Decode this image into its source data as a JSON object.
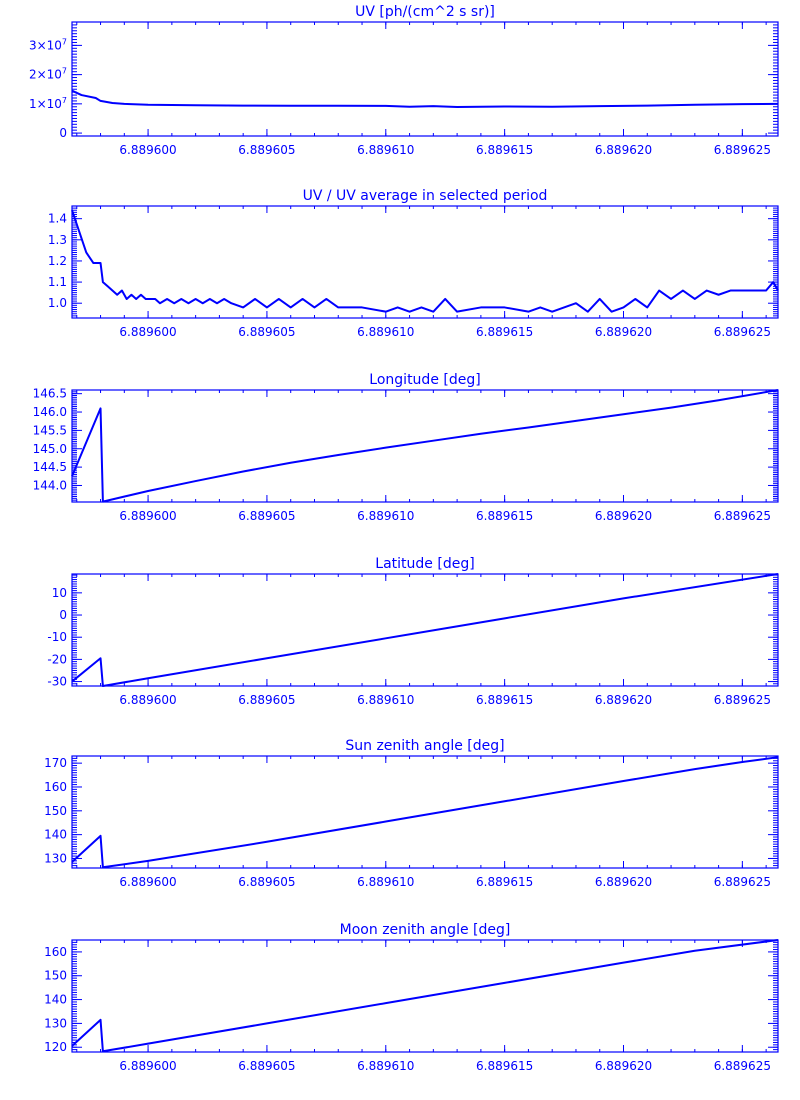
{
  "figure": {
    "background": "#ffffff",
    "ink_color": "#0000ff"
  },
  "chart_data": [
    {
      "type": "line",
      "title": "UV [ph/(cm^2 s sr)]",
      "xlabel": "",
      "ylabel": "",
      "x_tick_labels": [
        "6.889600",
        "6.889605",
        "6.889610",
        "6.889615",
        "6.889620",
        "6.889625"
      ],
      "x_ticks": [
        6.8896,
        6.889605,
        6.88961,
        6.889615,
        6.88962,
        6.889625
      ],
      "xlim": [
        6.8895968,
        6.8896265
      ],
      "ylim": [
        -1000000,
        38000000
      ],
      "y_ticks": [
        0,
        10000000,
        20000000,
        30000000
      ],
      "y_tick_labels": [
        {
          "mantissa": "0",
          "exponent": ""
        },
        {
          "mantissa": "1×10",
          "exponent": "7"
        },
        {
          "mantissa": "2×10",
          "exponent": "7"
        },
        {
          "mantissa": "3×10",
          "exponent": "7"
        }
      ],
      "grid": false,
      "series": [
        {
          "x": [
            6.8895968,
            6.8895972,
            6.8895978,
            6.889598,
            6.8895985,
            6.889599,
            6.8896,
            6.889601,
            6.889602,
            6.889604,
            6.889606,
            6.889608,
            6.88961,
            6.889611,
            6.889612,
            6.889613,
            6.889615,
            6.889617,
            6.889619,
            6.889621,
            6.889623,
            6.889625,
            6.8896265
          ],
          "y": [
            14500000,
            13000000,
            12000000,
            11000000,
            10300000,
            10000000,
            9700000,
            9600000,
            9500000,
            9400000,
            9350000,
            9350000,
            9300000,
            9000000,
            9200000,
            8900000,
            9100000,
            9000000,
            9200000,
            9400000,
            9700000,
            9900000,
            10000000
          ]
        }
      ]
    },
    {
      "type": "line",
      "title": "UV / UV average in selected period",
      "xlabel": "",
      "ylabel": "",
      "x_tick_labels": [
        "6.889600",
        "6.889605",
        "6.889610",
        "6.889615",
        "6.889620",
        "6.889625"
      ],
      "x_ticks": [
        6.8896,
        6.889605,
        6.88961,
        6.889615,
        6.88962,
        6.889625
      ],
      "xlim": [
        6.8895968,
        6.8896265
      ],
      "ylim": [
        0.93,
        1.46
      ],
      "y_ticks": [
        1.0,
        1.1,
        1.2,
        1.3,
        1.4
      ],
      "y_tick_labels": [
        "1.0",
        "1.1",
        "1.2",
        "1.3",
        "1.4"
      ],
      "grid": false,
      "series": [
        {
          "x": [
            6.8895968,
            6.8895971,
            6.8895974,
            6.8895977,
            6.889598,
            6.8895981,
            6.8895983,
            6.8895985,
            6.8895987,
            6.8895989,
            6.8895991,
            6.8895993,
            6.8895995,
            6.8895997,
            6.8895999,
            6.8896001,
            6.8896003,
            6.8896005,
            6.8896008,
            6.8896011,
            6.8896014,
            6.8896017,
            6.889602,
            6.8896023,
            6.8896026,
            6.8896029,
            6.8896032,
            6.8896035,
            6.889604,
            6.8896045,
            6.889605,
            6.8896055,
            6.889606,
            6.8896065,
            6.889607,
            6.8896075,
            6.889608,
            6.889609,
            6.88961,
            6.8896105,
            6.889611,
            6.8896115,
            6.889612,
            6.8896125,
            6.889613,
            6.889614,
            6.889615,
            6.889616,
            6.8896165,
            6.889617,
            6.8896175,
            6.889618,
            6.8896185,
            6.889619,
            6.8896195,
            6.88962,
            6.8896205,
            6.889621,
            6.8896215,
            6.889622,
            6.8896225,
            6.889623,
            6.8896235,
            6.889624,
            6.8896245,
            6.889625,
            6.8896255,
            6.889626,
            6.8896263,
            6.8896265
          ],
          "y": [
            1.44,
            1.34,
            1.24,
            1.19,
            1.19,
            1.1,
            1.08,
            1.06,
            1.04,
            1.06,
            1.02,
            1.04,
            1.02,
            1.04,
            1.02,
            1.02,
            1.02,
            1.0,
            1.02,
            1.0,
            1.02,
            1.0,
            1.02,
            1.0,
            1.02,
            1.0,
            1.02,
            1.0,
            0.98,
            1.02,
            0.98,
            1.02,
            0.98,
            1.02,
            0.98,
            1.02,
            0.98,
            0.98,
            0.96,
            0.98,
            0.96,
            0.98,
            0.96,
            1.02,
            0.96,
            0.98,
            0.98,
            0.96,
            0.98,
            0.96,
            0.98,
            1.0,
            0.96,
            1.02,
            0.96,
            0.98,
            1.02,
            0.98,
            1.06,
            1.02,
            1.06,
            1.02,
            1.06,
            1.04,
            1.06,
            1.06,
            1.06,
            1.06,
            1.1,
            1.06
          ]
        }
      ]
    },
    {
      "type": "line",
      "title": "Longitude [deg]",
      "xlabel": "",
      "ylabel": "",
      "x_tick_labels": [
        "6.889600",
        "6.889605",
        "6.889610",
        "6.889615",
        "6.889620",
        "6.889625"
      ],
      "x_ticks": [
        6.8896,
        6.889605,
        6.88961,
        6.889615,
        6.88962,
        6.889625
      ],
      "xlim": [
        6.8895968,
        6.8896265
      ],
      "ylim": [
        143.55,
        146.6
      ],
      "y_ticks": [
        144.0,
        144.5,
        145.0,
        145.5,
        146.0,
        146.5
      ],
      "y_tick_labels": [
        "144.0",
        "144.5",
        "145.0",
        "145.5",
        "146.0",
        "146.5"
      ],
      "grid": false,
      "series": [
        {
          "x": [
            6.8895968,
            6.889598,
            6.8895981,
            6.8896,
            6.889602,
            6.889604,
            6.889606,
            6.889608,
            6.88961,
            6.889612,
            6.889614,
            6.889616,
            6.889618,
            6.88962,
            6.889622,
            6.889624,
            6.8896265
          ],
          "y": [
            144.25,
            146.1,
            143.56,
            143.85,
            144.12,
            144.38,
            144.62,
            144.83,
            145.03,
            145.22,
            145.41,
            145.58,
            145.76,
            145.94,
            146.12,
            146.32,
            146.6
          ]
        }
      ]
    },
    {
      "type": "line",
      "title": "Latitude [deg]",
      "xlabel": "",
      "ylabel": "",
      "x_tick_labels": [
        "6.889600",
        "6.889605",
        "6.889610",
        "6.889615",
        "6.889620",
        "6.889625"
      ],
      "x_ticks": [
        6.8896,
        6.889605,
        6.88961,
        6.889615,
        6.88962,
        6.889625
      ],
      "xlim": [
        6.8895968,
        6.8896265
      ],
      "ylim": [
        -32,
        18.5
      ],
      "y_ticks": [
        -30,
        -20,
        -10,
        0,
        10
      ],
      "y_tick_labels": [
        "-30",
        "-20",
        "-10",
        "0",
        "10"
      ],
      "grid": false,
      "series": [
        {
          "x": [
            6.8895968,
            6.889598,
            6.8895981,
            6.8896,
            6.889605,
            6.88961,
            6.889615,
            6.88962,
            6.8896265
          ],
          "y": [
            -30.0,
            -19.5,
            -32.0,
            -28.5,
            -19.5,
            -10.5,
            -1.5,
            7.5,
            18.5
          ]
        }
      ]
    },
    {
      "type": "line",
      "title": "Sun zenith angle [deg]",
      "xlabel": "",
      "ylabel": "",
      "x_tick_labels": [
        "6.889600",
        "6.889605",
        "6.889610",
        "6.889615",
        "6.889620",
        "6.889625"
      ],
      "x_ticks": [
        6.8896,
        6.889605,
        6.88961,
        6.889615,
        6.88962,
        6.889625
      ],
      "xlim": [
        6.8895968,
        6.8896265
      ],
      "ylim": [
        126,
        173
      ],
      "y_ticks": [
        130,
        140,
        150,
        160,
        170
      ],
      "y_tick_labels": [
        "130",
        "140",
        "150",
        "160",
        "170"
      ],
      "grid": false,
      "series": [
        {
          "x": [
            6.8895968,
            6.889598,
            6.8895981,
            6.8896,
            6.889605,
            6.88961,
            6.889615,
            6.88962,
            6.889623,
            6.889625,
            6.8896265
          ],
          "y": [
            128.5,
            139.5,
            126.3,
            129.0,
            137.0,
            145.5,
            154.0,
            162.5,
            167.5,
            170.5,
            172.5
          ]
        }
      ]
    },
    {
      "type": "line",
      "title": "Moon zenith angle [deg]",
      "xlabel": "",
      "ylabel": "",
      "x_tick_labels": [
        "6.889600",
        "6.889605",
        "6.889610",
        "6.889615",
        "6.889620",
        "6.889625"
      ],
      "x_ticks": [
        6.8896,
        6.889605,
        6.88961,
        6.889615,
        6.88962,
        6.889625
      ],
      "xlim": [
        6.8895968,
        6.8896265
      ],
      "ylim": [
        118,
        165
      ],
      "y_ticks": [
        120,
        130,
        140,
        150,
        160
      ],
      "y_tick_labels": [
        "120",
        "130",
        "140",
        "150",
        "160"
      ],
      "grid": false,
      "series": [
        {
          "x": [
            6.8895968,
            6.889598,
            6.8895981,
            6.8896,
            6.889605,
            6.88961,
            6.889615,
            6.88962,
            6.889623,
            6.8896265
          ],
          "y": [
            120.5,
            131.5,
            118.3,
            121.5,
            130.0,
            138.5,
            147.0,
            155.5,
            160.5,
            165.0
          ]
        }
      ]
    }
  ]
}
